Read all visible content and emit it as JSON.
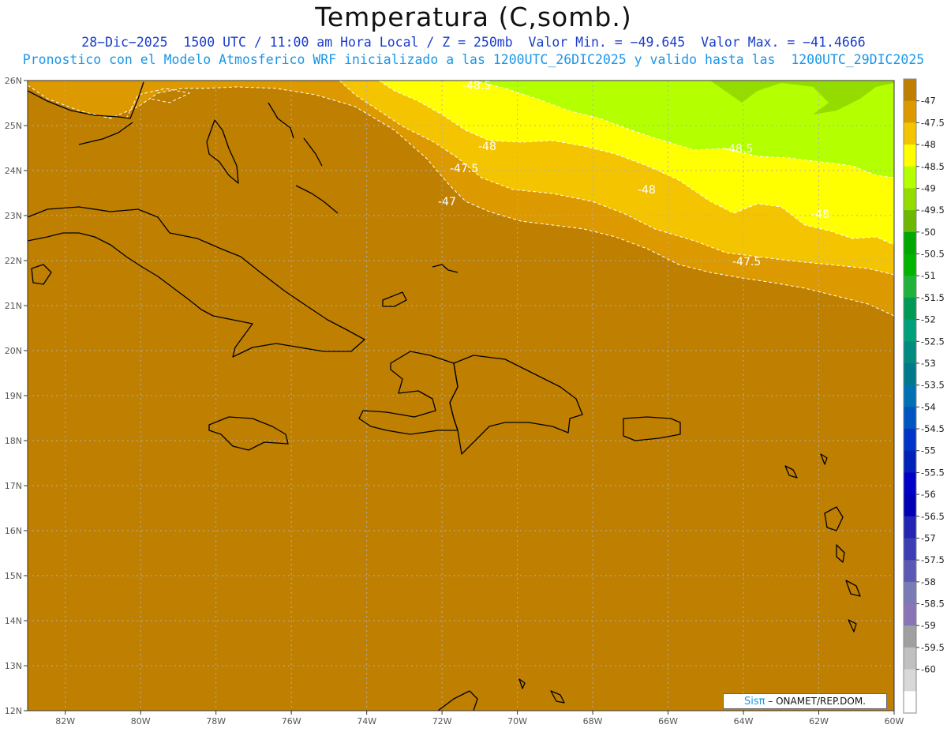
{
  "title": "Temperatura (C,somb.)",
  "subtitle_line1": "28−Dic−2025  1500 UTC / 11:00 am Hora Local / Z = 250mb  Valor Min. = −49.645  Valor Max. = −41.4666",
  "subtitle_line2": "Pronostico con el Modelo Atmosferico WRF inicializado a las 1200UTC_26DIC2025 y valido hasta las  1200UTC_29DIC2025",
  "map": {
    "lon_range": [
      -83,
      -60
    ],
    "lat_range": [
      12,
      26
    ],
    "x_ticks": [
      "82W",
      "80W",
      "78W",
      "76W",
      "74W",
      "72W",
      "70W",
      "68W",
      "66W",
      "64W",
      "62W",
      "60W"
    ],
    "y_ticks": [
      "12N",
      "13N",
      "14N",
      "15N",
      "16N",
      "17N",
      "18N",
      "19N",
      "20N",
      "21N",
      "22N",
      "23N",
      "24N",
      "25N",
      "26N"
    ],
    "contour_labels": [
      "-48.5",
      "-48",
      "-47.5",
      "-47",
      "-48",
      "-48.5",
      "-48",
      "-47.5"
    ],
    "colors": {
      "background_fill": "#bf7f00",
      "contour_line": "#ffffff",
      "coastline": "#000000"
    }
  },
  "colorbar": {
    "labels": [
      "-47",
      "-47.5",
      "-48",
      "-48.5",
      "-49",
      "-49.5",
      "-50",
      "-50.5",
      "-51",
      "-51.5",
      "-52",
      "-52.5",
      "-53",
      "-53.5",
      "-54",
      "-54.5",
      "-55",
      "-55.5",
      "-56",
      "-56.5",
      "-57",
      "-57.5",
      "-58",
      "-58.5",
      "-59",
      "-59.5",
      "-60"
    ],
    "colors": [
      "#bf7f00",
      "#dc9900",
      "#f5c400",
      "#ffff00",
      "#b4ff00",
      "#94dc00",
      "#6cb800",
      "#00a700",
      "#00b400",
      "#1eb43c",
      "#009955",
      "#00a07a",
      "#008a80",
      "#007a8a",
      "#0072b4",
      "#0055c0",
      "#0033c8",
      "#0022b8",
      "#0000c8",
      "#0000b4",
      "#2323b4",
      "#3c3cb4",
      "#5a5ab4",
      "#7a7ab4",
      "#8a74b8",
      "#a0a0a0",
      "#c0c0c0",
      "#d8d8d8",
      "#ffffff"
    ]
  },
  "credit": {
    "brand": "Sisπ",
    "text": " – ONAMET/REP.DOM."
  }
}
